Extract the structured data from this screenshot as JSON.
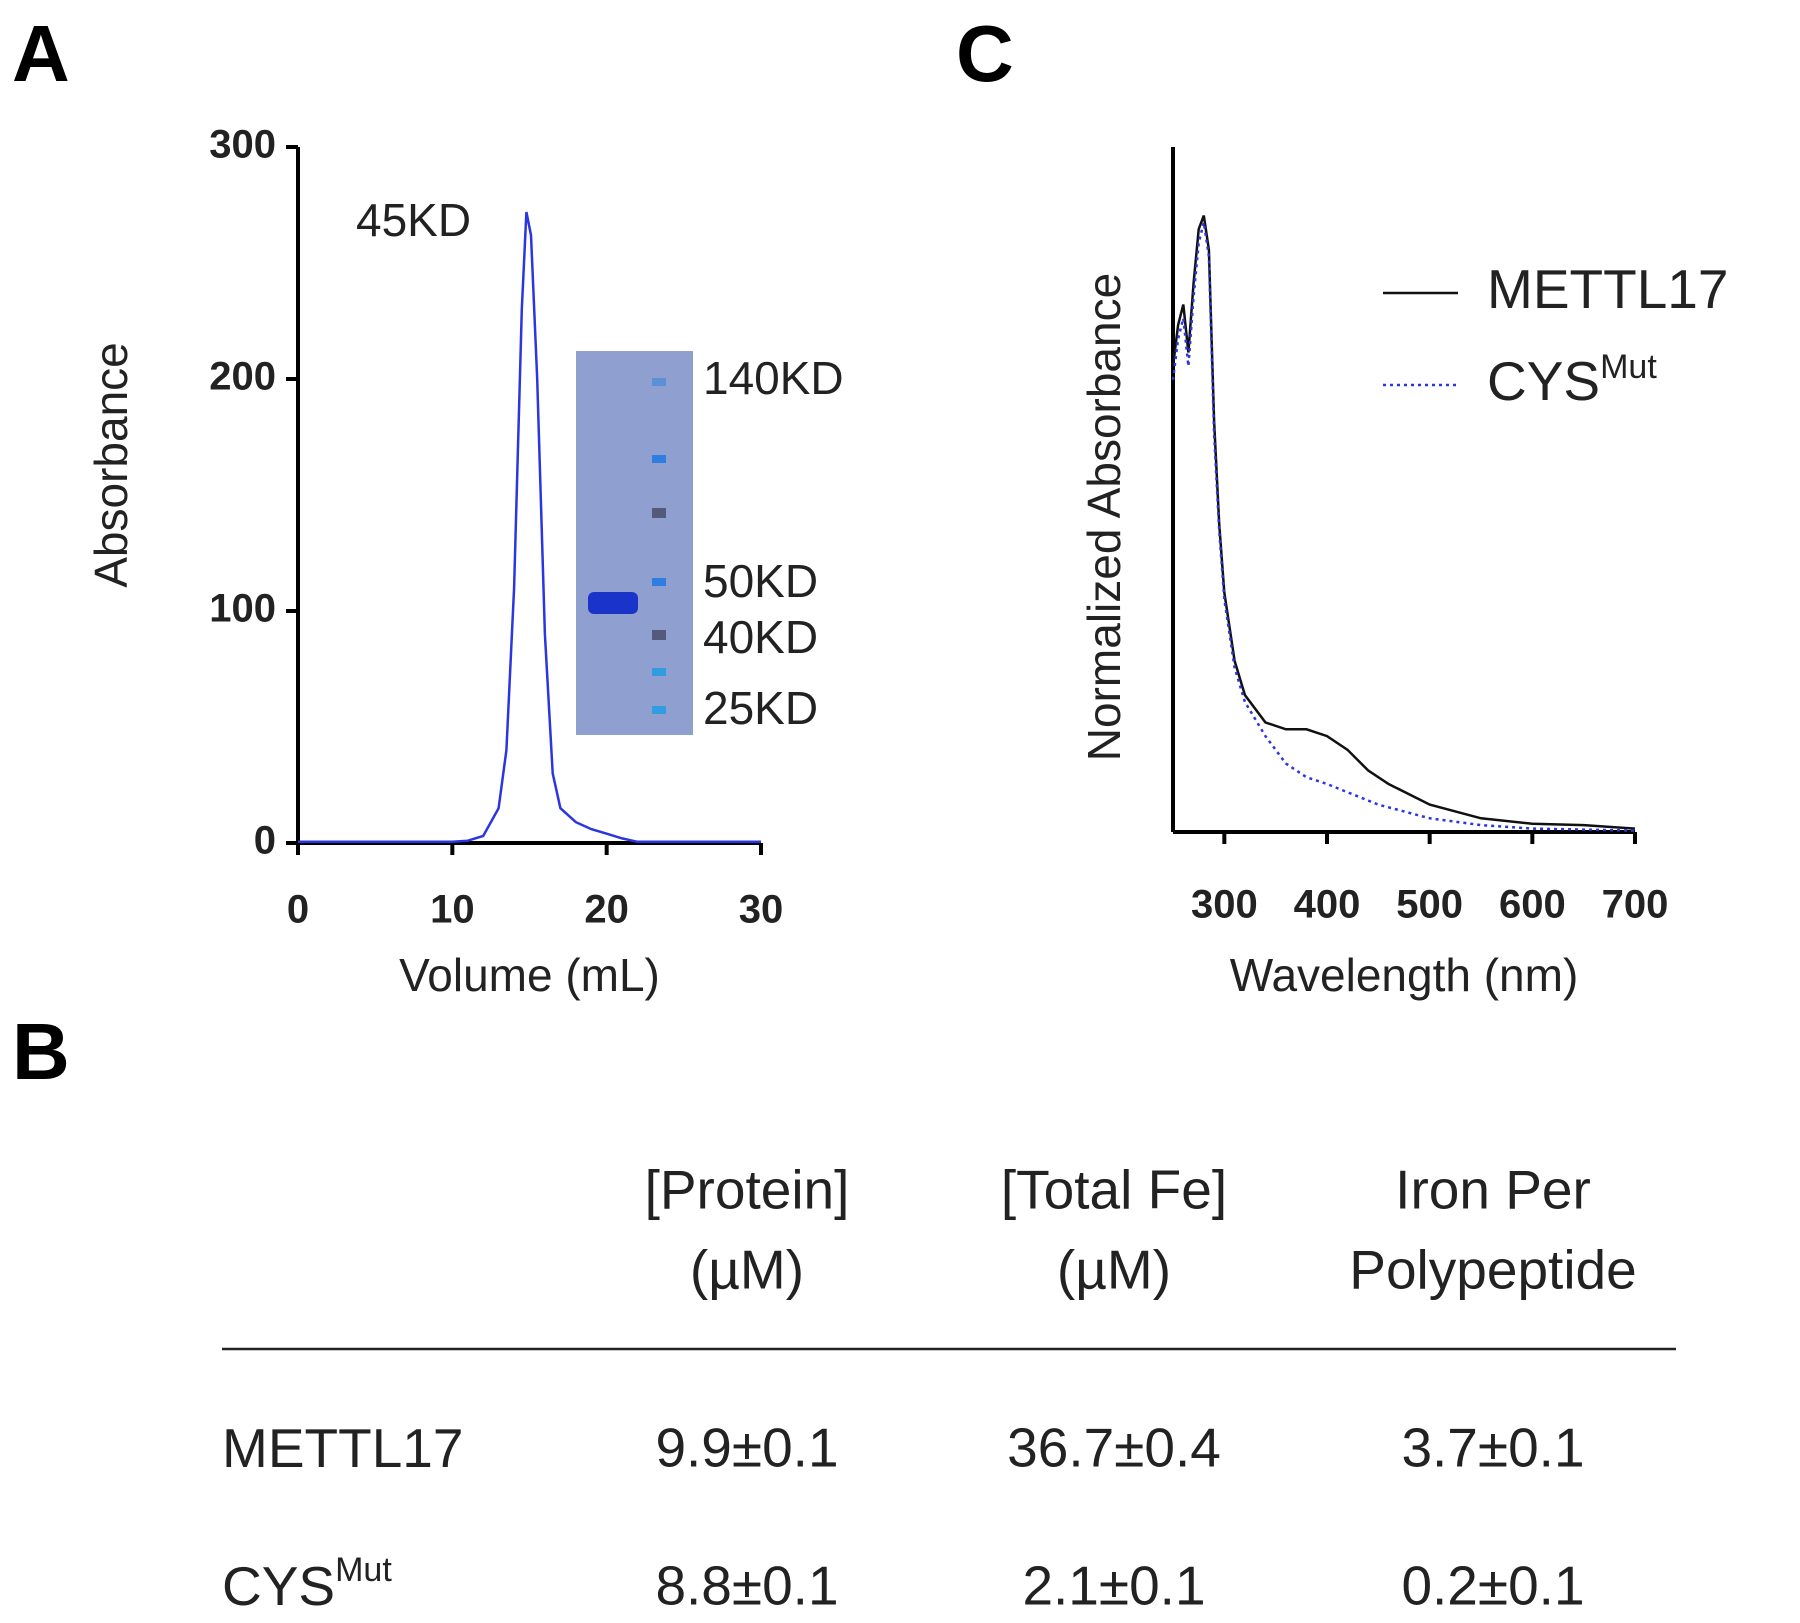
{
  "figure_labels": [
    "A",
    "B",
    "C"
  ],
  "chart_data": [
    {
      "type": "line",
      "xlabel": "Volume (mL)",
      "ylabel": "Absorbance",
      "xlim": [
        0,
        30
      ],
      "ylim": [
        0,
        300
      ],
      "xticks": [
        0,
        10,
        20,
        30
      ],
      "yticks": [
        0,
        100,
        200,
        300
      ],
      "color": "#2b35e0",
      "x": [
        0,
        10,
        11,
        12,
        13,
        13.5,
        14,
        14.5,
        14.8,
        15.1,
        15.5,
        16,
        16.5,
        17,
        18,
        19,
        20,
        21,
        22,
        30
      ],
      "values": [
        0.5,
        0.5,
        1,
        3,
        15,
        40,
        110,
        230,
        272,
        262,
        200,
        90,
        30,
        15,
        9,
        6,
        4,
        2,
        0.5,
        0.5
      ],
      "annotations": [
        "45KD"
      ],
      "gel_labels": [
        "140KD",
        "50KD",
        "40KD",
        "25KD"
      ]
    },
    {
      "type": "line",
      "xlabel": "Wavelength (nm)",
      "ylabel": "Normalized Absorbance",
      "xlim": [
        250,
        700
      ],
      "ylim": [
        0,
        1
      ],
      "xticks": [
        300,
        400,
        500,
        600,
        700
      ],
      "legend": "upper right",
      "series": [
        {
          "name": "METTL17",
          "color": "#111111",
          "linestyle": "solid",
          "x": [
            250,
            255,
            260,
            265,
            270,
            275,
            280,
            285,
            290,
            295,
            300,
            310,
            320,
            340,
            360,
            380,
            400,
            420,
            440,
            460,
            500,
            550,
            600,
            650,
            700
          ],
          "values": [
            0.68,
            0.74,
            0.77,
            0.7,
            0.8,
            0.88,
            0.9,
            0.85,
            0.6,
            0.45,
            0.35,
            0.25,
            0.2,
            0.16,
            0.15,
            0.15,
            0.14,
            0.12,
            0.09,
            0.07,
            0.04,
            0.02,
            0.012,
            0.01,
            0.005
          ]
        },
        {
          "name": "CYS",
          "name_superscript": "Mut",
          "color": "#2b35e0",
          "linestyle": "dotted",
          "x": [
            250,
            255,
            260,
            265,
            270,
            275,
            280,
            285,
            290,
            295,
            300,
            310,
            320,
            340,
            360,
            380,
            400,
            450,
            500,
            550,
            600,
            700
          ],
          "values": [
            0.66,
            0.72,
            0.75,
            0.68,
            0.78,
            0.86,
            0.89,
            0.84,
            0.58,
            0.44,
            0.34,
            0.24,
            0.19,
            0.14,
            0.1,
            0.08,
            0.07,
            0.04,
            0.02,
            0.01,
            0.005,
            0.002
          ]
        }
      ]
    }
  ],
  "table": {
    "header": [
      [
        "[Protein]",
        "(µM)"
      ],
      [
        "[Total Fe]",
        "(µM)"
      ],
      [
        "Iron Per",
        "Polypeptide"
      ]
    ],
    "rows": [
      [
        {
          "text": "METTL17"
        },
        "9.9±0.1",
        "36.7±0.4",
        "3.7±0.1"
      ],
      [
        {
          "text": "CYS",
          "superscript": "Mut"
        },
        "8.8±0.1",
        "2.1±0.1",
        "0.2±0.1"
      ]
    ]
  }
}
